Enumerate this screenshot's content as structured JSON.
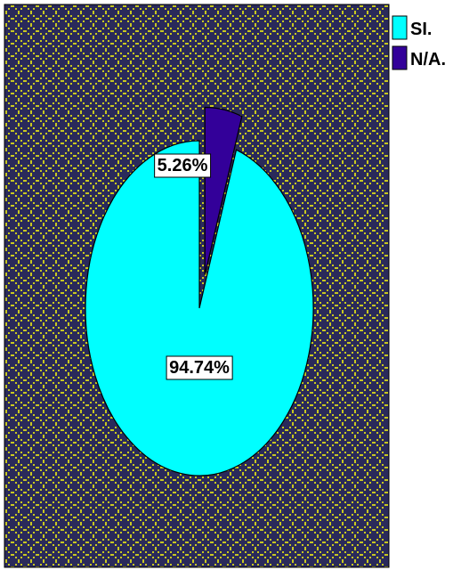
{
  "chart_data": {
    "type": "pie",
    "title": "",
    "categories": [
      "SI.",
      "N/A."
    ],
    "values": [
      94.74,
      5.26
    ],
    "value_unit": "%",
    "data_labels": [
      "94.74%",
      "5.26%"
    ],
    "exploded_slice": "N/A.",
    "start_angle_deg": 0,
    "direction": "counterclockwise",
    "legend": {
      "placement": "top-right",
      "entries": [
        "SI.",
        "N/A."
      ]
    }
  },
  "colors": {
    "slice_si": "#00FFFF",
    "slice_na": "#330099",
    "plot_background": "#2A2A5A",
    "plot_pattern_dots": "#C8C820",
    "outline": "#000000",
    "label_box": "#FFFFFF"
  }
}
